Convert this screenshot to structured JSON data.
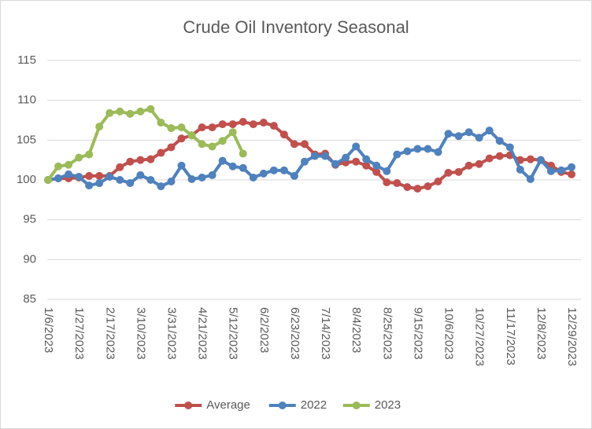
{
  "chart_data": {
    "type": "line",
    "title": "Crude Oil Inventory Seasonal",
    "categories": [
      "1/6/2023",
      null,
      null,
      "1/27/2023",
      null,
      null,
      "2/17/2023",
      null,
      null,
      "3/10/2023",
      null,
      null,
      "3/31/2023",
      null,
      null,
      "4/21/2023",
      null,
      null,
      "5/12/2023",
      null,
      null,
      "6/2/2023",
      null,
      null,
      "6/23/2023",
      null,
      null,
      "7/14/2023",
      null,
      null,
      "8/4/2023",
      null,
      null,
      "8/25/2023",
      null,
      null,
      "9/15/2023",
      null,
      null,
      "10/6/2023",
      null,
      null,
      "10/27/2023",
      null,
      null,
      "11/17/2023",
      null,
      null,
      "12/8/2023",
      null,
      null,
      "12/29/2023"
    ],
    "series": [
      {
        "name": "Average",
        "color": "#c0504d",
        "values": [
          100,
          100.2,
          100.2,
          100.3,
          100.5,
          100.5,
          100.5,
          101.6,
          102.3,
          102.5,
          102.6,
          103.4,
          104.1,
          105.2,
          105.6,
          106.6,
          106.6,
          107.0,
          107.0,
          107.3,
          107.0,
          107.2,
          106.8,
          105.7,
          104.5,
          104.5,
          103.2,
          103.3,
          101.9,
          102.2,
          102.3,
          101.8,
          101.0,
          99.7,
          99.6,
          99.1,
          98.9,
          99.2,
          99.8,
          100.9,
          101.0,
          101.8,
          102.0,
          102.7,
          103.0,
          103.1,
          102.5,
          102.6,
          102.5,
          101.8,
          101.0,
          100.7
        ]
      },
      {
        "name": "2022",
        "color": "#4f81bd",
        "values": [
          100,
          100.2,
          100.7,
          100.4,
          99.3,
          99.6,
          100.4,
          100.0,
          99.6,
          100.6,
          100.0,
          99.2,
          99.8,
          101.8,
          100.1,
          100.3,
          100.6,
          102.4,
          101.7,
          101.5,
          100.3,
          100.8,
          101.2,
          101.2,
          100.5,
          102.3,
          103.0,
          103.0,
          102.0,
          102.8,
          104.2,
          102.6,
          101.8,
          101.1,
          103.2,
          103.6,
          103.9,
          103.9,
          103.5,
          105.8,
          105.5,
          106.0,
          105.3,
          106.2,
          104.9,
          104.1,
          101.3,
          100.1,
          102.5,
          101.1,
          101.2,
          101.6
        ]
      },
      {
        "name": "2023",
        "color": "#9bbb59",
        "values": [
          100,
          101.7,
          101.9,
          102.8,
          103.2,
          106.7,
          108.4,
          108.6,
          108.3,
          108.6,
          108.9,
          107.2,
          106.5,
          106.6,
          105.6,
          104.5,
          104.2,
          104.9,
          106.0,
          103.3,
          null,
          null,
          null,
          null,
          null,
          null,
          null,
          null,
          null,
          null,
          null,
          null,
          null,
          null,
          null,
          null,
          null,
          null,
          null,
          null,
          null,
          null,
          null,
          null,
          null,
          null,
          null,
          null,
          null,
          null,
          null,
          null
        ]
      }
    ],
    "ylim": [
      85,
      115
    ],
    "yticks": [
      85,
      90,
      95,
      100,
      105,
      110,
      115
    ],
    "grid": true,
    "legend": "bottom"
  }
}
